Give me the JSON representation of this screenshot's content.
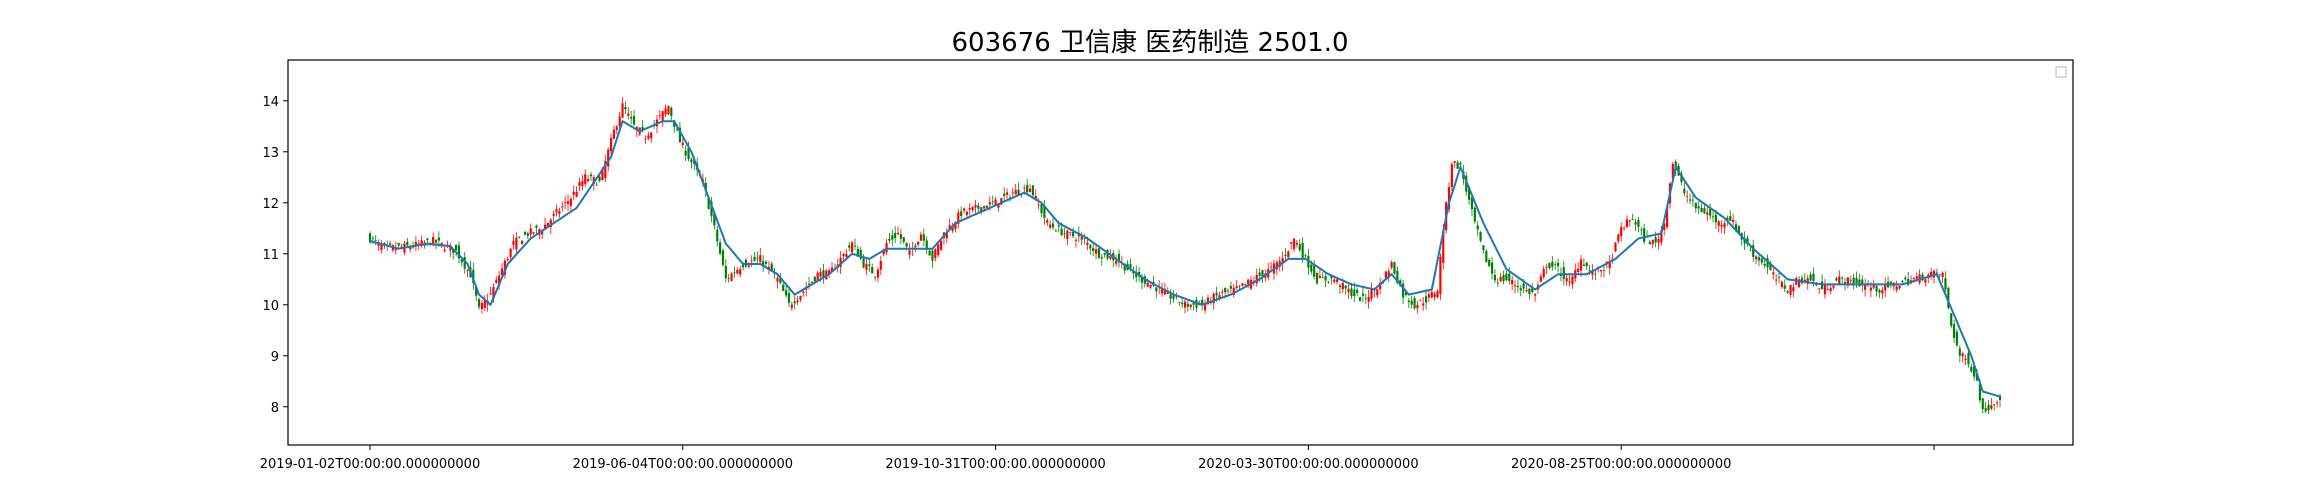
{
  "chart_data": {
    "type": "candlestick",
    "title": "603676 卫信康 医药制造 2501.0",
    "xlabel": "",
    "ylabel": "",
    "x_tick_labels": [
      "2019-01-02T00:00:00.000000000",
      "2019-06-04T00:00:00.000000000",
      "2019-10-31T00:00:00.000000000",
      "2020-03-30T00:00:00.000000000",
      "2020-08-25T00:00:00.000000000",
      ""
    ],
    "y_ticks": [
      8,
      9,
      10,
      11,
      12,
      13,
      14
    ],
    "ylim": [
      7.25,
      14.8
    ],
    "grid": false,
    "legend": "top-right (empty)",
    "colors": {
      "up": "#ff0000",
      "down": "#008000",
      "ma_line": "#1f77b4"
    },
    "close_path": [
      [
        0,
        11.3
      ],
      [
        5,
        11.1
      ],
      [
        15,
        11.15
      ],
      [
        22,
        11.25
      ],
      [
        30,
        11.05
      ],
      [
        35,
        10.6
      ],
      [
        38,
        9.9
      ],
      [
        42,
        10.2
      ],
      [
        50,
        11.2
      ],
      [
        55,
        11.4
      ],
      [
        60,
        11.5
      ],
      [
        65,
        11.8
      ],
      [
        70,
        12.1
      ],
      [
        75,
        12.5
      ],
      [
        80,
        12.4
      ],
      [
        85,
        13.4
      ],
      [
        88,
        13.9
      ],
      [
        92,
        13.5
      ],
      [
        96,
        13.3
      ],
      [
        100,
        13.6
      ],
      [
        104,
        13.9
      ],
      [
        108,
        13.2
      ],
      [
        112,
        12.8
      ],
      [
        116,
        12.4
      ],
      [
        120,
        11.5
      ],
      [
        124,
        10.5
      ],
      [
        130,
        10.8
      ],
      [
        136,
        10.9
      ],
      [
        142,
        10.5
      ],
      [
        146,
        10.0
      ],
      [
        150,
        10.2
      ],
      [
        156,
        10.6
      ],
      [
        160,
        10.6
      ],
      [
        164,
        10.9
      ],
      [
        168,
        11.2
      ],
      [
        172,
        10.8
      ],
      [
        176,
        10.6
      ],
      [
        180,
        11.2
      ],
      [
        184,
        11.4
      ],
      [
        188,
        11.0
      ],
      [
        192,
        11.4
      ],
      [
        196,
        10.9
      ],
      [
        200,
        11.4
      ],
      [
        206,
        11.8
      ],
      [
        212,
        11.9
      ],
      [
        218,
        12.0
      ],
      [
        224,
        12.2
      ],
      [
        230,
        12.3
      ],
      [
        236,
        11.6
      ],
      [
        242,
        11.4
      ],
      [
        248,
        11.3
      ],
      [
        254,
        11.0
      ],
      [
        260,
        10.9
      ],
      [
        266,
        10.6
      ],
      [
        272,
        10.4
      ],
      [
        278,
        10.2
      ],
      [
        284,
        10.0
      ],
      [
        290,
        10.0
      ],
      [
        296,
        10.2
      ],
      [
        302,
        10.3
      ],
      [
        308,
        10.5
      ],
      [
        314,
        10.7
      ],
      [
        318,
        10.9
      ],
      [
        322,
        11.3
      ],
      [
        326,
        10.9
      ],
      [
        330,
        10.5
      ],
      [
        336,
        10.5
      ],
      [
        340,
        10.3
      ],
      [
        346,
        10.1
      ],
      [
        352,
        10.4
      ],
      [
        356,
        10.8
      ],
      [
        360,
        10.2
      ],
      [
        364,
        10.0
      ],
      [
        368,
        10.1
      ],
      [
        372,
        10.3
      ],
      [
        374,
        11.5
      ],
      [
        377,
        12.8
      ],
      [
        380,
        12.7
      ],
      [
        384,
        11.8
      ],
      [
        388,
        11.0
      ],
      [
        392,
        10.5
      ],
      [
        396,
        10.5
      ],
      [
        402,
        10.3
      ],
      [
        406,
        10.2
      ],
      [
        410,
        10.8
      ],
      [
        414,
        10.7
      ],
      [
        418,
        10.4
      ],
      [
        422,
        10.9
      ],
      [
        426,
        10.6
      ],
      [
        432,
        10.8
      ],
      [
        436,
        11.5
      ],
      [
        440,
        11.7
      ],
      [
        444,
        11.3
      ],
      [
        448,
        11.2
      ],
      [
        451,
        11.6
      ],
      [
        454,
        12.8
      ],
      [
        458,
        12.2
      ],
      [
        462,
        11.9
      ],
      [
        466,
        11.8
      ],
      [
        470,
        11.6
      ],
      [
        474,
        11.7
      ],
      [
        478,
        11.3
      ],
      [
        482,
        11.0
      ],
      [
        486,
        10.8
      ],
      [
        490,
        10.5
      ],
      [
        494,
        10.3
      ],
      [
        498,
        10.5
      ],
      [
        502,
        10.5
      ],
      [
        506,
        10.3
      ],
      [
        512,
        10.5
      ],
      [
        520,
        10.4
      ],
      [
        526,
        10.3
      ],
      [
        532,
        10.4
      ],
      [
        538,
        10.5
      ],
      [
        544,
        10.6
      ],
      [
        548,
        10.6
      ],
      [
        551,
        9.6
      ],
      [
        554,
        9.0
      ],
      [
        557,
        8.9
      ],
      [
        560,
        8.5
      ],
      [
        562,
        7.9
      ],
      [
        564,
        8.0
      ],
      [
        568,
        8.2
      ]
    ],
    "ma_path": [
      [
        0,
        11.25
      ],
      [
        10,
        11.1
      ],
      [
        20,
        11.2
      ],
      [
        28,
        11.15
      ],
      [
        34,
        10.8
      ],
      [
        38,
        10.2
      ],
      [
        42,
        10.0
      ],
      [
        48,
        10.8
      ],
      [
        56,
        11.3
      ],
      [
        64,
        11.6
      ],
      [
        72,
        11.9
      ],
      [
        78,
        12.4
      ],
      [
        84,
        12.9
      ],
      [
        88,
        13.6
      ],
      [
        94,
        13.4
      ],
      [
        102,
        13.6
      ],
      [
        106,
        13.6
      ],
      [
        112,
        13.0
      ],
      [
        118,
        12.1
      ],
      [
        124,
        11.2
      ],
      [
        130,
        10.8
      ],
      [
        136,
        10.8
      ],
      [
        142,
        10.6
      ],
      [
        148,
        10.2
      ],
      [
        154,
        10.4
      ],
      [
        160,
        10.6
      ],
      [
        168,
        11.0
      ],
      [
        174,
        10.9
      ],
      [
        180,
        11.1
      ],
      [
        188,
        11.1
      ],
      [
        196,
        11.1
      ],
      [
        204,
        11.6
      ],
      [
        212,
        11.8
      ],
      [
        220,
        12.0
      ],
      [
        228,
        12.2
      ],
      [
        234,
        12.0
      ],
      [
        240,
        11.6
      ],
      [
        250,
        11.3
      ],
      [
        260,
        10.9
      ],
      [
        270,
        10.5
      ],
      [
        280,
        10.2
      ],
      [
        290,
        10.0
      ],
      [
        300,
        10.2
      ],
      [
        310,
        10.5
      ],
      [
        320,
        10.9
      ],
      [
        326,
        10.9
      ],
      [
        334,
        10.6
      ],
      [
        342,
        10.4
      ],
      [
        350,
        10.3
      ],
      [
        356,
        10.6
      ],
      [
        362,
        10.2
      ],
      [
        370,
        10.3
      ],
      [
        376,
        12.0
      ],
      [
        380,
        12.7
      ],
      [
        388,
        11.6
      ],
      [
        396,
        10.7
      ],
      [
        406,
        10.3
      ],
      [
        414,
        10.6
      ],
      [
        424,
        10.6
      ],
      [
        434,
        10.9
      ],
      [
        442,
        11.3
      ],
      [
        450,
        11.4
      ],
      [
        455,
        12.7
      ],
      [
        462,
        12.1
      ],
      [
        472,
        11.7
      ],
      [
        482,
        11.1
      ],
      [
        494,
        10.5
      ],
      [
        506,
        10.4
      ],
      [
        520,
        10.4
      ],
      [
        534,
        10.4
      ],
      [
        546,
        10.6
      ],
      [
        552,
        9.8
      ],
      [
        558,
        9.0
      ],
      [
        562,
        8.3
      ],
      [
        568,
        8.2
      ]
    ],
    "bars_count": 569,
    "seed": 7
  }
}
